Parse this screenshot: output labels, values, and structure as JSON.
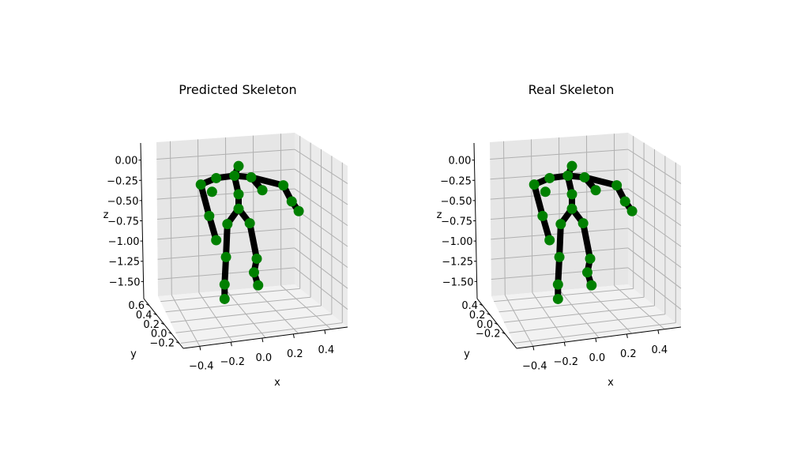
{
  "colors": {
    "pane": "#f2f2f2",
    "pane_side": "#ebebeb",
    "pane_back": "#e6e6e6",
    "grid": "#b0b0b0",
    "bone": "#000000",
    "joint": "#008000"
  },
  "chart_data": [
    {
      "type": "scatter",
      "title": "Predicted Skeleton",
      "xlabel": "x",
      "ylabel": "y",
      "zlabel": "z",
      "x_ticks": [
        "−0.4",
        "−0.2",
        "0.0",
        "0.2",
        "0.4"
      ],
      "y_ticks": [
        "−0.2",
        "0.0",
        "0.2",
        "0.4",
        "0.6"
      ],
      "z_ticks": [
        "0.00",
        "−0.25",
        "−0.50",
        "−0.75",
        "−1.00",
        "−1.25",
        "−1.50"
      ],
      "joints": [
        {
          "x": 0.0,
          "z": -0.08
        },
        {
          "x": -0.03,
          "z": -0.2
        },
        {
          "x": -0.16,
          "z": -0.23
        },
        {
          "x": 0.09,
          "z": -0.22
        },
        {
          "x": -0.19,
          "z": -0.4
        },
        {
          "x": 0.17,
          "z": -0.38
        },
        {
          "x": -0.27,
          "z": -0.31
        },
        {
          "x": -0.21,
          "z": -0.7
        },
        {
          "x": -0.16,
          "z": -1.0
        },
        {
          "x": 0.32,
          "z": -0.32
        },
        {
          "x": 0.38,
          "z": -0.52
        },
        {
          "x": 0.43,
          "z": -0.64
        },
        {
          "x": 0.0,
          "z": -0.43
        },
        {
          "x": 0.0,
          "z": -0.61
        },
        {
          "x": -0.08,
          "z": -0.8
        },
        {
          "x": 0.08,
          "z": -0.79
        },
        {
          "x": -0.09,
          "z": -1.21
        },
        {
          "x": -0.1,
          "z": -1.55
        },
        {
          "x": -0.1,
          "z": -1.73
        },
        {
          "x": 0.13,
          "z": -1.23
        },
        {
          "x": 0.11,
          "z": -1.4
        },
        {
          "x": 0.14,
          "z": -1.56
        }
      ]
    },
    {
      "type": "scatter",
      "title": "Real Skeleton",
      "xlabel": "x",
      "ylabel": "y",
      "zlabel": "z",
      "x_ticks": [
        "−0.4",
        "−0.2",
        "0.0",
        "0.2",
        "0.4"
      ],
      "y_ticks": [
        "−0.2",
        "0.0",
        "0.2",
        "0.4"
      ],
      "z_ticks": [
        "0.00",
        "−0.25",
        "−0.50",
        "−0.75",
        "−1.00",
        "−1.25",
        "−1.50"
      ],
      "joints": [
        {
          "x": 0.0,
          "z": -0.08
        },
        {
          "x": -0.03,
          "z": -0.2
        },
        {
          "x": -0.16,
          "z": -0.23
        },
        {
          "x": 0.09,
          "z": -0.22
        },
        {
          "x": -0.19,
          "z": -0.4
        },
        {
          "x": 0.17,
          "z": -0.38
        },
        {
          "x": -0.27,
          "z": -0.31
        },
        {
          "x": -0.21,
          "z": -0.7
        },
        {
          "x": -0.16,
          "z": -1.0
        },
        {
          "x": 0.32,
          "z": -0.32
        },
        {
          "x": 0.38,
          "z": -0.52
        },
        {
          "x": 0.43,
          "z": -0.64
        },
        {
          "x": 0.0,
          "z": -0.43
        },
        {
          "x": 0.0,
          "z": -0.61
        },
        {
          "x": -0.08,
          "z": -0.8
        },
        {
          "x": 0.08,
          "z": -0.79
        },
        {
          "x": -0.09,
          "z": -1.21
        },
        {
          "x": -0.1,
          "z": -1.55
        },
        {
          "x": -0.1,
          "z": -1.73
        },
        {
          "x": 0.13,
          "z": -1.23
        },
        {
          "x": 0.11,
          "z": -1.4
        },
        {
          "x": 0.14,
          "z": -1.56
        }
      ]
    }
  ]
}
